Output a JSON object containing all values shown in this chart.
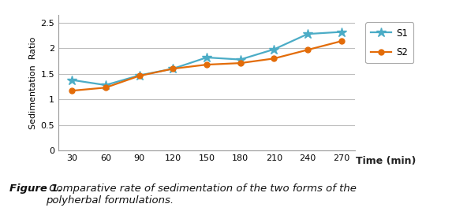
{
  "x": [
    30,
    60,
    90,
    120,
    150,
    180,
    210,
    240,
    270
  ],
  "s1": [
    1.38,
    1.28,
    1.47,
    1.6,
    1.82,
    1.78,
    1.98,
    2.28,
    2.32
  ],
  "s2": [
    1.17,
    1.23,
    1.46,
    1.6,
    1.68,
    1.71,
    1.8,
    1.97,
    2.14
  ],
  "s1_color": "#4bacc6",
  "s2_color": "#e36c09",
  "s1_label": "S1",
  "s2_label": "S2",
  "ylabel": "Sedimentation  Ratio",
  "xlabel": "Time (min)",
  "yticks": [
    0,
    0.5,
    1,
    1.5,
    2,
    2.5
  ],
  "ylim": [
    0,
    2.65
  ],
  "xlim": [
    18,
    282
  ],
  "xticks": [
    30,
    60,
    90,
    120,
    150,
    180,
    210,
    240,
    270
  ],
  "bg_color": "#ffffff",
  "grid_color": "#bebebe",
  "caption_bold": "Figure 1.",
  "caption_rest": " Comparative rate of sedimentation of the two forms of the\npolyherbal formulations.",
  "caption_fontsize": 9.5,
  "tick_fontsize": 8,
  "ylabel_fontsize": 8,
  "xlabel_fontsize": 9
}
